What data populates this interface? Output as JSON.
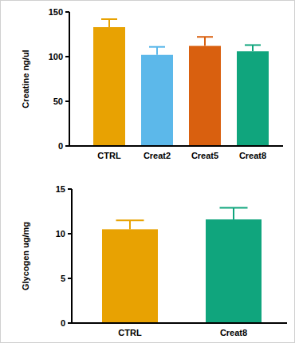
{
  "chart_data": [
    {
      "type": "bar",
      "y_label": "Creatine ng/ul",
      "categories": [
        "CTRL",
        "Creat2",
        "Creat5",
        "Creat8"
      ],
      "values": [
        133,
        102,
        112,
        106
      ],
      "errors": [
        9,
        9,
        10,
        7
      ],
      "colors": [
        "#e8a202",
        "#5cb8ea",
        "#d9600f",
        "#10a57d"
      ],
      "ylim": [
        0,
        150
      ],
      "yticks": [
        0,
        50,
        100,
        150
      ],
      "grid": false
    },
    {
      "type": "bar",
      "y_label": "Glycogen ug/mg",
      "categories": [
        "CTRL",
        "Creat8"
      ],
      "values": [
        10.5,
        11.6
      ],
      "errors": [
        1.0,
        1.3
      ],
      "colors": [
        "#e8a202",
        "#10a57d"
      ],
      "ylim": [
        0,
        15
      ],
      "yticks": [
        0,
        5,
        10,
        15
      ],
      "grid": false
    }
  ]
}
